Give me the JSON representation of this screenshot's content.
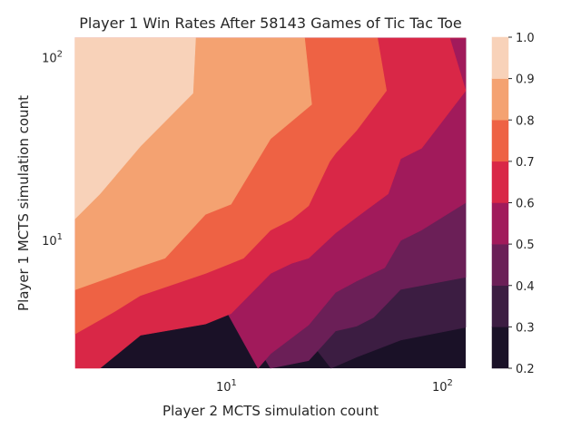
{
  "chart_data": {
    "type": "heatmap",
    "subtype": "filled-contour",
    "title": "Player 1 Win Rates After 58143 Games of Tic Tac Toe",
    "xlabel": "Player 2 MCTS simulation count",
    "ylabel": "Player 1 MCTS simulation count",
    "x_scale": "log",
    "y_scale": "log",
    "xlim": [
      2,
      128
    ],
    "ylim": [
      2,
      128
    ],
    "x_ticks": [
      {
        "value": 10,
        "label": "10¹"
      },
      {
        "value": 100,
        "label": "10²"
      }
    ],
    "y_ticks": [
      {
        "value": 10,
        "label": "10¹"
      },
      {
        "value": 100,
        "label": "10²"
      }
    ],
    "colorbar": {
      "levels": [
        0.2,
        0.3,
        0.4,
        0.5,
        0.6,
        0.7,
        0.8,
        0.9,
        1.0
      ],
      "tick_labels": [
        "0.2",
        "0.3",
        "0.4",
        "0.5",
        "0.6",
        "0.7",
        "0.8",
        "0.9",
        "1.0"
      ],
      "colors": [
        "#1a1127",
        "#3c1d42",
        "#6b1f57",
        "#a11a5b",
        "#d92747",
        "#ee6244",
        "#f4a271",
        "#f8d2b9"
      ],
      "placement": "right"
    },
    "grid": false,
    "contour_boundaries": [
      {
        "level": 0.9,
        "points": [
          [
            2,
            13.2
          ],
          [
            2.6,
            18
          ],
          [
            4,
            32.8
          ],
          [
            7,
            63.9
          ],
          [
            7.2,
            128
          ]
        ]
      },
      {
        "level": 0.8,
        "points": [
          [
            2,
            5.38
          ],
          [
            4,
            7.21
          ],
          [
            5.2,
            8.01
          ],
          [
            8,
            13.9
          ],
          [
            10.5,
            15.8
          ],
          [
            16,
            36
          ],
          [
            24.8,
            55.5
          ],
          [
            23,
            128
          ]
        ]
      },
      {
        "level": 0.7,
        "points": [
          [
            2,
            3.09
          ],
          [
            3,
            4.05
          ],
          [
            4,
            5
          ],
          [
            8,
            6.6
          ],
          [
            12,
            8
          ],
          [
            16,
            11.4
          ],
          [
            20,
            13
          ],
          [
            24,
            15.5
          ],
          [
            30,
            27
          ],
          [
            32,
            30
          ],
          [
            40,
            40
          ],
          [
            55,
            66
          ],
          [
            50,
            128
          ]
        ]
      },
      {
        "level": 0.6,
        "points": [
          [
            2,
            2
          ],
          [
            2.6,
            2
          ],
          [
            4,
            3.03
          ],
          [
            8,
            3.49
          ],
          [
            10.5,
            3.98
          ],
          [
            16,
            6.6
          ],
          [
            20,
            7.5
          ],
          [
            24,
            8
          ],
          [
            32,
            11
          ],
          [
            42,
            14
          ],
          [
            56,
            18
          ],
          [
            64,
            28
          ],
          [
            80,
            32
          ],
          [
            128,
            66
          ],
          [
            108,
            128
          ],
          [
            128,
            128
          ]
        ]
      },
      {
        "level": 0.5,
        "points": [
          [
            14,
            2
          ],
          [
            16,
            2.4
          ],
          [
            24,
            3.45
          ],
          [
            32,
            5.2
          ],
          [
            40,
            6
          ],
          [
            54,
            7.1
          ],
          [
            64,
            10
          ],
          [
            80,
            11.4
          ],
          [
            128,
            16.1
          ]
        ]
      },
      {
        "level": 0.4,
        "points": [
          [
            16,
            2
          ],
          [
            24,
            2.2
          ],
          [
            32,
            3.2
          ],
          [
            40,
            3.4
          ],
          [
            48,
            3.8
          ],
          [
            64,
            5.4
          ],
          [
            128,
            6.3
          ]
        ]
      },
      {
        "level": 0.3,
        "points": [
          [
            30.5,
            2
          ],
          [
            40,
            2.3
          ],
          [
            64,
            2.85
          ],
          [
            128,
            3.35
          ]
        ]
      }
    ]
  }
}
